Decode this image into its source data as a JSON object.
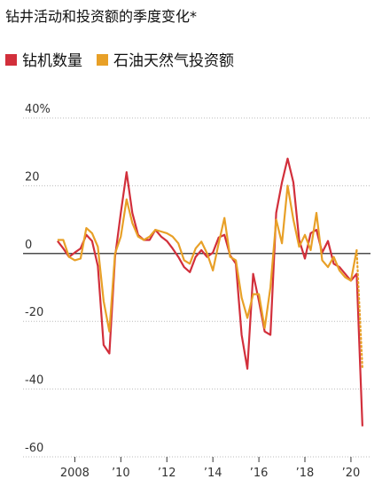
{
  "chart_data": {
    "type": "line",
    "title": "钻井活动和投资额的季度变化*",
    "x": [
      2007.25,
      2007.5,
      2007.75,
      2008,
      2008.25,
      2008.5,
      2008.75,
      2009,
      2009.25,
      2009.5,
      2009.75,
      2010,
      2010.25,
      2010.5,
      2010.75,
      2011,
      2011.25,
      2011.5,
      2011.75,
      2012,
      2012.25,
      2012.5,
      2012.75,
      2013,
      2013.25,
      2013.5,
      2013.75,
      2014,
      2014.25,
      2014.5,
      2014.75,
      2015,
      2015.25,
      2015.5,
      2015.75,
      2016,
      2016.25,
      2016.5,
      2016.75,
      2017,
      2017.25,
      2017.5,
      2017.75,
      2018,
      2018.25,
      2018.5,
      2018.75,
      2019,
      2019.25,
      2019.5,
      2019.75,
      2020,
      2020.25,
      2020.5
    ],
    "series": [
      {
        "name": "钻机数量",
        "color": "#d22f3b",
        "values": [
          3.7,
          1.5,
          -1,
          0.3,
          1.5,
          5.5,
          3.7,
          -3.7,
          -27,
          -29.5,
          -1,
          12,
          24,
          12,
          5.5,
          4,
          4,
          7,
          5,
          3.7,
          1.5,
          -1,
          -4,
          -5.5,
          -1,
          1,
          -1,
          0.3,
          4.7,
          5.5,
          -0.5,
          -3,
          -24,
          -34,
          -6,
          -14,
          -23,
          -24,
          12,
          21,
          28,
          21,
          4,
          -1.5,
          6,
          7,
          0.3,
          3.7,
          -3,
          -4,
          -6,
          -8,
          -6,
          -51
        ]
      },
      {
        "name": "石油天然气投资额",
        "color": "#e8a027",
        "dashed_last": true,
        "values": [
          4,
          4,
          -1,
          -2,
          -1.5,
          7.5,
          6,
          2,
          -14,
          -23,
          0,
          5,
          16,
          9,
          5,
          4,
          5,
          7,
          6.5,
          6,
          5,
          3,
          -2,
          -3,
          1.5,
          3.5,
          0,
          -5,
          3,
          10.5,
          -1,
          -2,
          -13,
          -19,
          -12,
          -12,
          -22,
          -10,
          10,
          3,
          20,
          10,
          2,
          5.5,
          1,
          12,
          -2,
          -4,
          -1,
          -5,
          -7,
          -8,
          1,
          -34
        ]
      }
    ],
    "xlim": [
      2005.75,
      2020.85
    ],
    "xticks": [
      {
        "value": 2008,
        "label": "2008"
      },
      {
        "value": 2010,
        "label": "’10"
      },
      {
        "value": 2012,
        "label": "’12"
      },
      {
        "value": 2014,
        "label": "’14"
      },
      {
        "value": 2016,
        "label": "’16"
      },
      {
        "value": 2018,
        "label": "’18"
      },
      {
        "value": 2020,
        "label": "’20"
      }
    ],
    "ylim": [
      -60,
      40
    ],
    "yticks": [
      {
        "value": 40,
        "label": "40%"
      },
      20,
      0,
      -20,
      -40,
      -60
    ],
    "grid": true
  }
}
